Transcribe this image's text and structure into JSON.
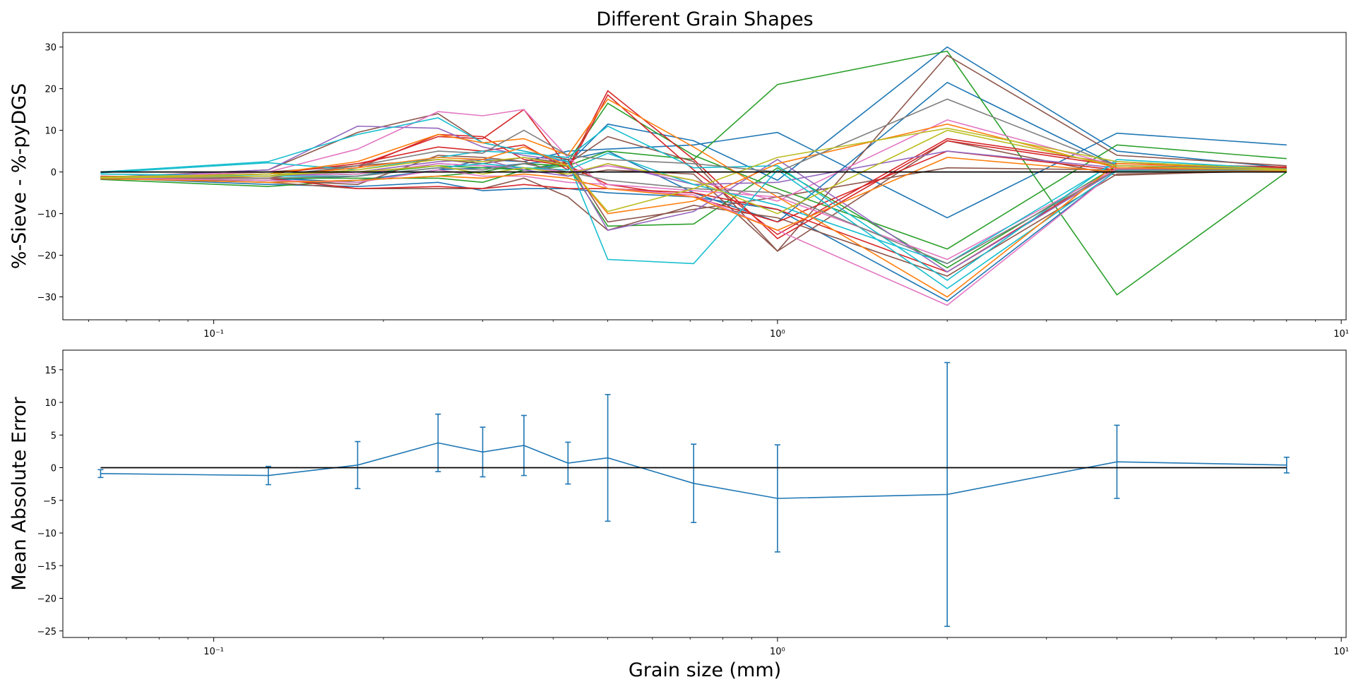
{
  "figure": {
    "title": "Different Grain Shapes",
    "xlabel": "Grain size (mm)"
  },
  "chart_data": [
    {
      "type": "line",
      "title": "Different Grain Shapes",
      "xlabel": "",
      "ylabel": "%-Sieve - %-pyDGS",
      "xscale": "log",
      "xlim": [
        0.054,
        10.2
      ],
      "ylim": [
        -35.5,
        33.5
      ],
      "grid": false,
      "x": [
        0.063,
        0.125,
        0.18,
        0.25,
        0.3,
        0.355,
        0.425,
        0.5,
        0.71,
        1.0,
        2.0,
        4.0,
        8.0
      ],
      "yticks": [
        -30,
        -20,
        -10,
        0,
        10,
        20,
        30
      ],
      "xtick_labels": [
        "10⁻¹",
        "10⁰",
        "10¹"
      ],
      "xtick_values": [
        0.1,
        1,
        10
      ],
      "reference_line": {
        "y": 0,
        "color": "#000000"
      },
      "series": [
        {
          "color": "#1f77b4",
          "values": [
            -1.2,
            -1.5,
            -2.5,
            0.5,
            3.0,
            2.5,
            5.0,
            5.5,
            6.5,
            9.5,
            -11.0,
            9.3,
            6.5
          ]
        },
        {
          "color": "#1f77b4",
          "values": [
            -1.5,
            -2.0,
            -1.0,
            2.0,
            1.5,
            0.5,
            2.0,
            11.5,
            7.5,
            -2.0,
            30.0,
            5.0,
            1.0
          ]
        },
        {
          "color": "#1f77b4",
          "values": [
            -1.3,
            -2.5,
            -2.0,
            0.5,
            1.0,
            2.0,
            3.0,
            5.0,
            -5.0,
            -12.0,
            21.5,
            1.5,
            0.5
          ]
        },
        {
          "color": "#1f77b4",
          "values": [
            -1.4,
            -3.0,
            -3.5,
            -2.5,
            -4.5,
            -4.0,
            -4.0,
            -5.0,
            -6.0,
            -9.0,
            -31.0,
            0.5,
            0.8
          ]
        },
        {
          "color": "#2ca02c",
          "values": [
            -1.8,
            -3.5,
            -2.0,
            -1.0,
            0.0,
            2.0,
            1.5,
            5.0,
            3.0,
            21.0,
            29.0,
            -29.5,
            0.0
          ]
        },
        {
          "color": "#2ca02c",
          "values": [
            -1.6,
            -1.5,
            -1.5,
            -1.5,
            -2.5,
            0.5,
            2.5,
            16.5,
            4.0,
            -4.0,
            -18.5,
            6.5,
            3.2
          ]
        },
        {
          "color": "#2ca02c",
          "values": [
            -1.2,
            -1.0,
            -0.5,
            1.5,
            1.0,
            0.5,
            1.5,
            -13.0,
            -12.5,
            1.0,
            -23.0,
            1.5,
            0.5
          ]
        },
        {
          "color": "#8c564b",
          "values": [
            -1.5,
            0.0,
            1.5,
            3.0,
            2.0,
            3.5,
            2.0,
            8.5,
            2.5,
            -19.0,
            28.0,
            4.0,
            1.5
          ]
        },
        {
          "color": "#8c564b",
          "values": [
            -1.3,
            0.5,
            9.5,
            14.0,
            7.0,
            5.0,
            3.0,
            -12.0,
            -9.0,
            -6.0,
            1.0,
            0.5,
            0.3
          ]
        },
        {
          "color": "#8c564b",
          "values": [
            -1.5,
            -2.5,
            -4.0,
            -4.0,
            -4.0,
            -1.5,
            -6.0,
            -14.0,
            -8.0,
            -11.0,
            -25.0,
            -0.5,
            0.2
          ]
        },
        {
          "color": "#8c564b",
          "values": [
            -1.7,
            -2.0,
            -3.0,
            4.0,
            3.5,
            2.5,
            -1.0,
            0.5,
            -0.5,
            -19.0,
            7.5,
            -0.8,
            0.5
          ]
        },
        {
          "color": "#d62728",
          "values": [
            -1.5,
            -1.5,
            1.5,
            8.5,
            8.0,
            15.0,
            1.0,
            19.5,
            3.0,
            -16.0,
            7.5,
            1.5,
            1.0
          ]
        },
        {
          "color": "#d62728",
          "values": [
            -1.2,
            -0.5,
            2.0,
            6.0,
            5.0,
            6.5,
            0.5,
            18.5,
            0.5,
            -15.0,
            8.0,
            2.0,
            1.2
          ]
        },
        {
          "color": "#d62728",
          "values": [
            -1.4,
            -1.0,
            1.0,
            9.0,
            8.5,
            3.0,
            1.5,
            -3.0,
            -6.0,
            -12.0,
            5.0,
            0.5,
            0.8
          ]
        },
        {
          "color": "#d62728",
          "values": [
            -1.0,
            -1.5,
            -4.0,
            -3.5,
            -4.0,
            -3.0,
            -4.0,
            -4.0,
            -5.0,
            -9.0,
            -24.0,
            1.0,
            1.0
          ]
        },
        {
          "color": "#e377c2",
          "values": [
            -1.3,
            0.0,
            5.5,
            14.5,
            13.5,
            15.0,
            3.5,
            -4.0,
            -5.5,
            -14.0,
            -32.0,
            0.5,
            0.4
          ]
        },
        {
          "color": "#e377c2",
          "values": [
            -1.2,
            -1.0,
            -0.5,
            2.0,
            1.5,
            1.0,
            0.0,
            1.5,
            -2.0,
            -7.0,
            12.5,
            1.5,
            0.6
          ]
        },
        {
          "color": "#e377c2",
          "values": [
            -1.5,
            -2.0,
            -2.5,
            0.5,
            -1.0,
            -1.0,
            -2.5,
            -3.0,
            -4.5,
            -6.0,
            -21.0,
            0.8,
            0.5
          ]
        },
        {
          "color": "#9467bd",
          "values": [
            -1.4,
            0.5,
            11.0,
            10.5,
            6.0,
            4.0,
            2.5,
            -14.0,
            -9.5,
            3.0,
            -24.0,
            0.5,
            0.8
          ]
        },
        {
          "color": "#9467bd",
          "values": [
            -1.2,
            -1.0,
            0.0,
            2.5,
            3.0,
            0.5,
            -1.0,
            2.0,
            -3.0,
            -2.5,
            5.0,
            1.0,
            0.4
          ]
        },
        {
          "color": "#17becf",
          "values": [
            0.0,
            2.5,
            9.0,
            13.0,
            7.0,
            5.0,
            2.5,
            -21.0,
            -22.0,
            0.5,
            -28.0,
            0.3,
            0.5
          ]
        },
        {
          "color": "#17becf",
          "values": [
            -0.2,
            2.2,
            0.5,
            3.5,
            5.0,
            4.5,
            3.5,
            11.0,
            1.0,
            1.5,
            -26.0,
            3.0,
            0.7
          ]
        },
        {
          "color": "#17becf",
          "values": [
            -0.5,
            -1.0,
            -1.0,
            1.0,
            2.0,
            1.0,
            0.5,
            4.5,
            -3.0,
            -8.0,
            -22.0,
            2.5,
            0.6
          ]
        },
        {
          "color": "#ff7f0e",
          "values": [
            -1.3,
            -0.5,
            2.5,
            9.0,
            7.0,
            8.0,
            4.0,
            17.5,
            6.0,
            -6.0,
            -30.0,
            2.0,
            0.8
          ]
        },
        {
          "color": "#ff7f0e",
          "values": [
            -1.4,
            -1.0,
            1.0,
            3.5,
            3.0,
            6.0,
            1.5,
            -10.0,
            -7.0,
            2.0,
            11.5,
            1.0,
            0.5
          ]
        },
        {
          "color": "#ff7f0e",
          "values": [
            -1.6,
            -2.5,
            -2.0,
            -1.0,
            -1.5,
            -0.5,
            -1.5,
            -4.0,
            -6.0,
            -14.0,
            3.5,
            0.0,
            0.2
          ]
        },
        {
          "color": "#7f7f7f",
          "values": [
            -1.5,
            -1.0,
            1.5,
            5.0,
            4.5,
            10.0,
            4.0,
            3.0,
            2.0,
            0.0,
            17.5,
            1.5,
            0.8
          ]
        },
        {
          "color": "#7f7f7f",
          "values": [
            -1.3,
            -1.5,
            -1.0,
            1.0,
            0.5,
            2.0,
            0.0,
            -2.0,
            -4.0,
            -5.0,
            -22.0,
            0.5,
            0.5
          ]
        },
        {
          "color": "#bcbd22",
          "values": [
            -1.4,
            -1.0,
            0.5,
            3.0,
            2.5,
            3.5,
            1.5,
            -9.5,
            -4.0,
            3.5,
            10.5,
            2.5,
            0.6
          ]
        },
        {
          "color": "#bcbd22",
          "values": [
            -1.2,
            -0.5,
            0.0,
            1.5,
            -0.5,
            1.0,
            -0.5,
            2.0,
            -2.0,
            -10.0,
            10.0,
            1.5,
            0.4
          ]
        }
      ]
    },
    {
      "type": "line",
      "title": "",
      "xlabel": "Grain size (mm)",
      "ylabel": "Mean Absolute Error",
      "xscale": "log",
      "xlim": [
        0.054,
        10.2
      ],
      "ylim": [
        -26.0,
        18.0
      ],
      "grid": false,
      "x": [
        0.063,
        0.125,
        0.18,
        0.25,
        0.3,
        0.355,
        0.425,
        0.5,
        0.71,
        1.0,
        2.0,
        4.0,
        8.0
      ],
      "yticks": [
        -25,
        -20,
        -15,
        -10,
        -5,
        0,
        5,
        10,
        15
      ],
      "xtick_labels": [
        "10⁻¹",
        "10⁰",
        "10¹"
      ],
      "xtick_values": [
        0.1,
        1,
        10
      ],
      "reference_line": {
        "y": 0,
        "color": "#000000"
      },
      "series": [
        {
          "color": "#1f77b4",
          "values": [
            -0.9,
            -1.2,
            0.4,
            3.8,
            2.4,
            3.4,
            0.7,
            1.5,
            -2.4,
            -4.7,
            -4.1,
            0.9,
            0.4
          ],
          "error": [
            0.6,
            1.4,
            3.6,
            4.4,
            3.8,
            4.6,
            3.2,
            9.7,
            6.0,
            8.2,
            20.2,
            5.6,
            1.2
          ]
        }
      ]
    }
  ]
}
